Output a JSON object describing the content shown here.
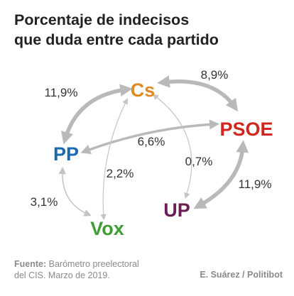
{
  "title": {
    "line1": "Porcentaje de indecisos",
    "line2": "que duda entre cada partido"
  },
  "parties": [
    {
      "id": "cs",
      "label": "Cs",
      "color": "#e08a1e"
    },
    {
      "id": "psoe",
      "label": "PSOE",
      "color": "#d1261d"
    },
    {
      "id": "pp",
      "label": "PP",
      "color": "#1b6ab0"
    },
    {
      "id": "up",
      "label": "UP",
      "color": "#6b1e55"
    },
    {
      "id": "vox",
      "label": "Vox",
      "color": "#3e9c35"
    }
  ],
  "flows": [
    {
      "from": "PP",
      "to": "Cs",
      "value": "11,9%"
    },
    {
      "from": "Cs",
      "to": "PSOE",
      "value": "8,9%"
    },
    {
      "from": "PP",
      "to": "PSOE",
      "value": "6,6%"
    },
    {
      "from": "Cs",
      "to": "UP",
      "value": "0,7%"
    },
    {
      "from": "Cs",
      "to": "Vox",
      "value": "2,2%"
    },
    {
      "from": "PP",
      "to": "Vox",
      "value": "3,1%"
    },
    {
      "from": "PSOE",
      "to": "UP",
      "value": "11,9%"
    }
  ],
  "footer": {
    "source_label": "Fuente:",
    "source_line1": "Barómetro preelectoral",
    "source_line2": "del CIS. Marzo de 2019.",
    "credit": "E. Suárez / Politibot"
  },
  "colors": {
    "arrow": "#b9b9b9",
    "thin_arrow": "#c4c4c4"
  }
}
